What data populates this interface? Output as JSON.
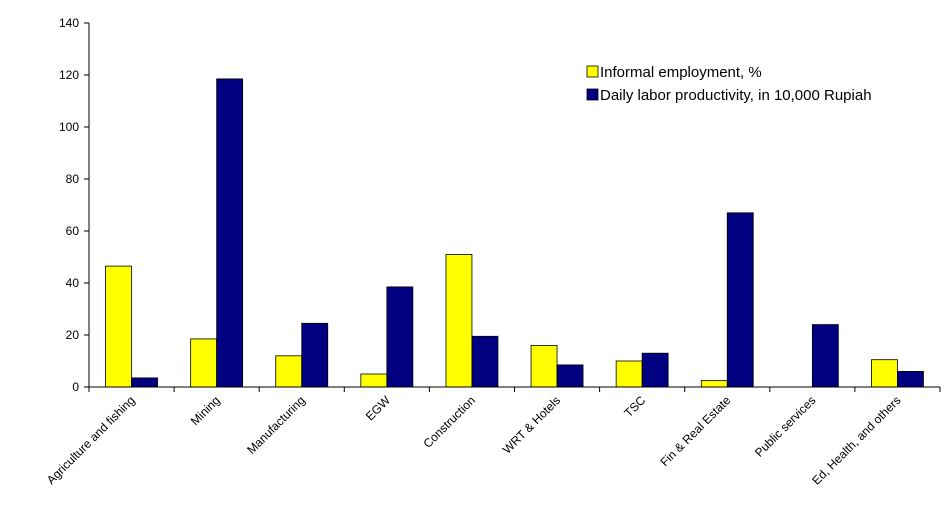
{
  "chart_data": {
    "type": "bar",
    "title": "",
    "xlabel": "",
    "ylabel": "",
    "categories": [
      "Agriculture and fishing",
      "Mining",
      "Manufacturing",
      "EGW",
      "Construction",
      "WRT & Hotels",
      "TSC",
      "Fin & Real Estate",
      "Public services",
      "Ed, Health, and others"
    ],
    "series": [
      {
        "name": "Informal employment, %",
        "color": "#FFFF00",
        "values": [
          46.5,
          18.5,
          12,
          5,
          51,
          16,
          10,
          2.5,
          0,
          10.5
        ]
      },
      {
        "name": "Daily labor productivity, in 10,000 Rupiah",
        "color": "#000080",
        "values": [
          3.5,
          118.5,
          24.5,
          38.5,
          19.5,
          8.5,
          13,
          67,
          24,
          6
        ]
      }
    ],
    "ylim": [
      0,
      140
    ],
    "yticks": [
      0,
      20,
      40,
      60,
      80,
      100,
      120,
      140
    ],
    "grid": false,
    "legend_position": "top-right"
  }
}
